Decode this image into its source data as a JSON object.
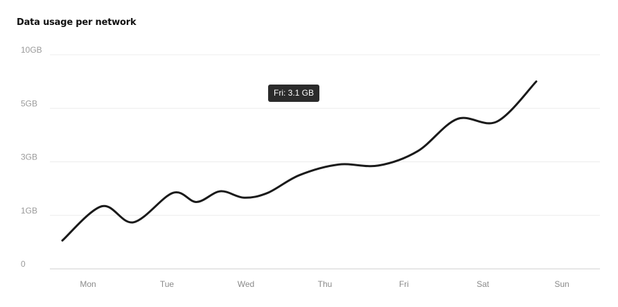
{
  "header": {
    "title": "Data usage per network"
  },
  "tooltip": {
    "text": "Fri: 3.1 GB"
  },
  "chart_data": {
    "type": "line",
    "title": "Data usage per network",
    "xlabel": "",
    "ylabel": "",
    "categories": [
      "Mon",
      "Tue",
      "Wed",
      "Thu",
      "Fri",
      "Sat",
      "Sun"
    ],
    "y_ticks": [
      "0",
      "1GB",
      "3GB",
      "5GB",
      "10GB"
    ],
    "y_tick_levels": [
      0,
      1,
      2,
      3,
      4
    ],
    "grid": true,
    "legend": "none",
    "line_color": "#1a1a1a",
    "series": [
      {
        "points": [
          {
            "x": 0.0,
            "y": 0.53
          },
          {
            "x": 0.5,
            "y": 1.17
          },
          {
            "x": 0.9,
            "y": 0.87
          },
          {
            "x": 1.4,
            "y": 1.42
          },
          {
            "x": 1.7,
            "y": 1.25
          },
          {
            "x": 2.0,
            "y": 1.45
          },
          {
            "x": 2.3,
            "y": 1.33
          },
          {
            "x": 2.6,
            "y": 1.42
          },
          {
            "x": 3.0,
            "y": 1.75
          },
          {
            "x": 3.5,
            "y": 1.95
          },
          {
            "x": 4.0,
            "y": 1.93
          },
          {
            "x": 4.5,
            "y": 2.2
          },
          {
            "x": 5.0,
            "y": 2.8
          },
          {
            "x": 5.5,
            "y": 2.75
          },
          {
            "x": 6.0,
            "y": 3.5
          }
        ]
      }
    ]
  }
}
